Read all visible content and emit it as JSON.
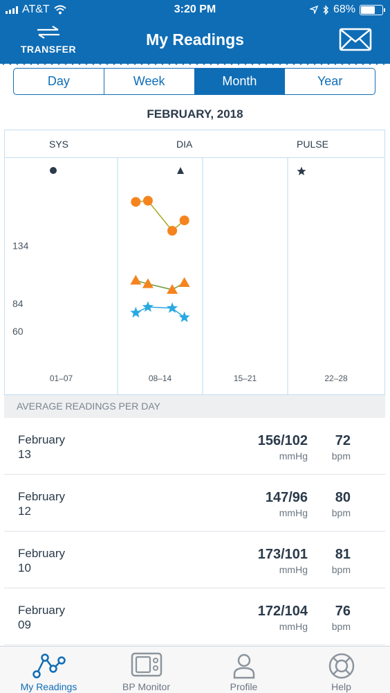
{
  "status_bar": {
    "carrier": "AT&T",
    "time": "3:20 PM",
    "battery": "68%",
    "battery_level": 0.68
  },
  "header": {
    "transfer_label": "TRANSFER",
    "title": "My Readings",
    "icons": [
      "transfer-icon",
      "mail-icon"
    ]
  },
  "segments": {
    "items": [
      "Day",
      "Week",
      "Month",
      "Year"
    ],
    "selected": "Month"
  },
  "period_title": "FEBRUARY, 2018",
  "legend": {
    "sys": "SYS",
    "dia": "DIA",
    "pulse": "PULSE"
  },
  "colors": {
    "brand": "#0f6db5",
    "sys": "#f5841f",
    "dia": "#f5841f",
    "pulse": "#29a9e1",
    "sys_line": "#a8a820",
    "dia_line": "#6a9a3a",
    "pulse_line": "#29a9e1"
  },
  "chart_data": {
    "type": "scatter",
    "y_ticks": [
      134,
      84,
      60
    ],
    "ylim": [
      30,
      210
    ],
    "x_categories": [
      "01–07",
      "08–14",
      "15–21",
      "22–28"
    ],
    "x_range": [
      1,
      28
    ],
    "series": [
      {
        "name": "SYS",
        "marker": "circle",
        "points": [
          [
            9,
            172
          ],
          [
            10,
            173
          ],
          [
            12,
            147
          ],
          [
            13,
            156
          ]
        ]
      },
      {
        "name": "DIA",
        "marker": "triangle",
        "points": [
          [
            9,
            104
          ],
          [
            10,
            101
          ],
          [
            12,
            96
          ],
          [
            13,
            102
          ]
        ]
      },
      {
        "name": "PULSE",
        "marker": "star",
        "points": [
          [
            9,
            76
          ],
          [
            10,
            81
          ],
          [
            12,
            80
          ],
          [
            13,
            72
          ]
        ]
      }
    ],
    "grid": "vertical"
  },
  "average_header": "AVERAGE READINGS PER DAY",
  "readings": [
    {
      "month": "February",
      "day": "13",
      "bp": "156/102",
      "bp_unit": "mmHg",
      "pulse": "72",
      "pulse_unit": "bpm"
    },
    {
      "month": "February",
      "day": "12",
      "bp": "147/96",
      "bp_unit": "mmHg",
      "pulse": "80",
      "pulse_unit": "bpm"
    },
    {
      "month": "February",
      "day": "10",
      "bp": "173/101",
      "bp_unit": "mmHg",
      "pulse": "81",
      "pulse_unit": "bpm"
    },
    {
      "month": "February",
      "day": "09",
      "bp": "172/104",
      "bp_unit": "mmHg",
      "pulse": "76",
      "pulse_unit": "bpm"
    }
  ],
  "tabs": [
    {
      "label": "My Readings",
      "icon": "graph-icon",
      "active": true
    },
    {
      "label": "BP Monitor",
      "icon": "monitor-icon",
      "active": false
    },
    {
      "label": "Profile",
      "icon": "person-icon",
      "active": false
    },
    {
      "label": "Help",
      "icon": "lifebuoy-icon",
      "active": false
    }
  ]
}
